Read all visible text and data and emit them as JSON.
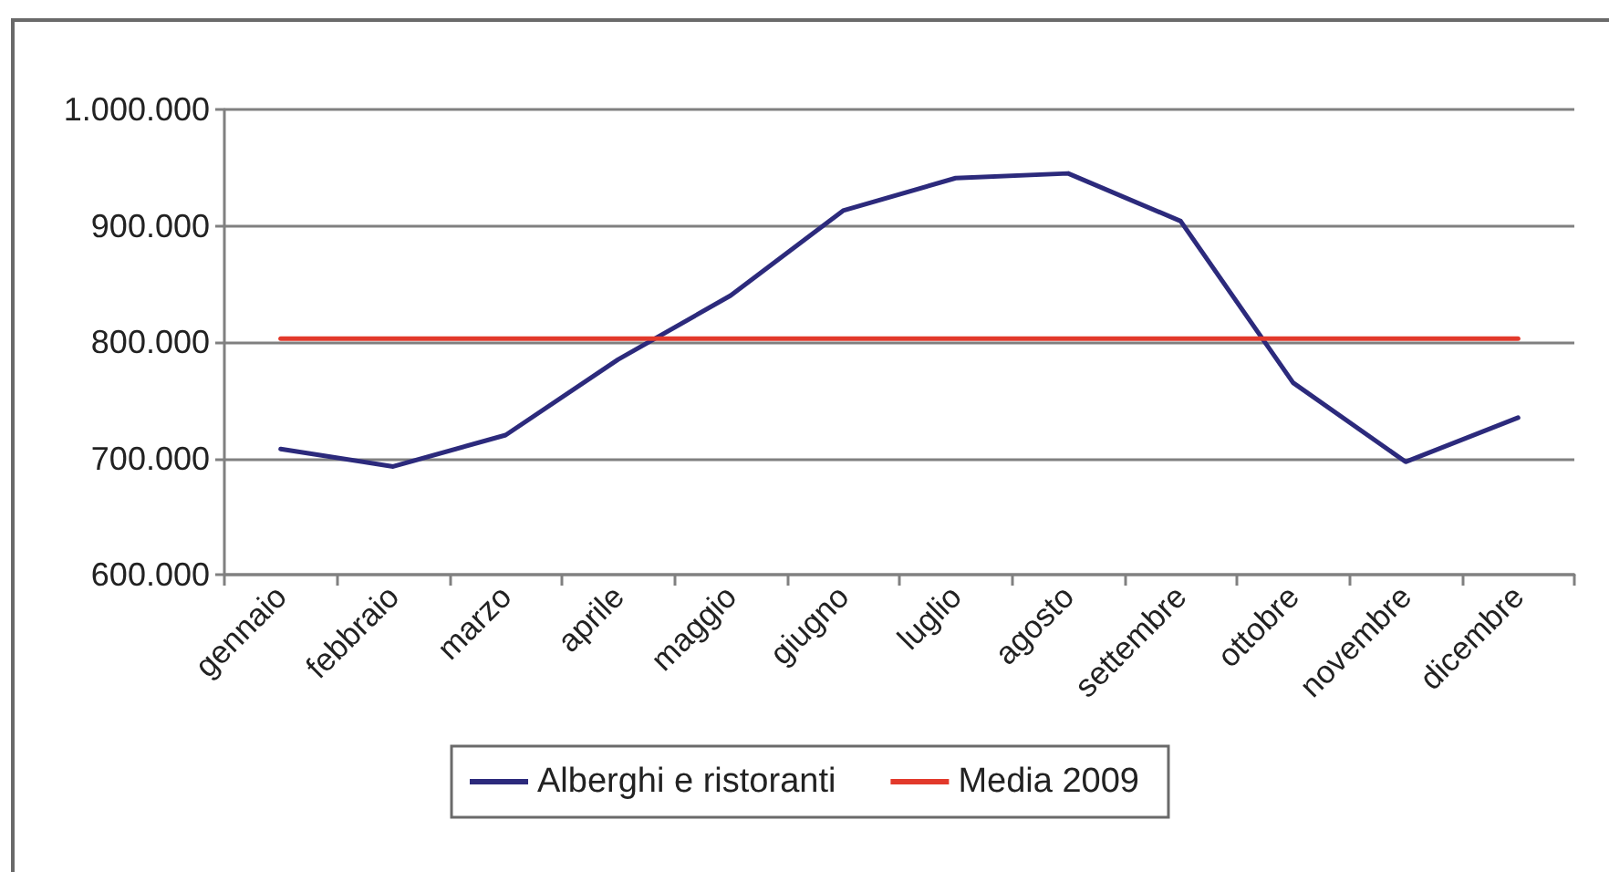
{
  "chart_data": {
    "type": "line",
    "categories": [
      "gennaio",
      "febbraio",
      "marzo",
      "aprile",
      "maggio",
      "giugno",
      "luglio",
      "agosto",
      "settembre",
      "ottobre",
      "novembre",
      "dicembre"
    ],
    "series": [
      {
        "name": "Alberghi e ristoranti",
        "color": "#2c2a7c",
        "values": [
          708000,
          693000,
          720000,
          785000,
          840000,
          913000,
          941000,
          945000,
          904000,
          765000,
          697000,
          735000
        ]
      },
      {
        "name": "Media 2009",
        "color": "#e2392b",
        "values": [
          803000,
          803000,
          803000,
          803000,
          803000,
          803000,
          803000,
          803000,
          803000,
          803000,
          803000,
          803000
        ]
      }
    ],
    "ylim": [
      600000,
      1000000
    ],
    "yticks": [
      {
        "value": 600000,
        "label": "600.000"
      },
      {
        "value": 700000,
        "label": "700.000"
      },
      {
        "value": 800000,
        "label": "800.000"
      },
      {
        "value": 900000,
        "label": "900.000"
      },
      {
        "value": 1000000,
        "label": "1.000.000"
      }
    ],
    "grid": "y",
    "legend": "bottom",
    "marker": "none",
    "line_style": "solid"
  }
}
